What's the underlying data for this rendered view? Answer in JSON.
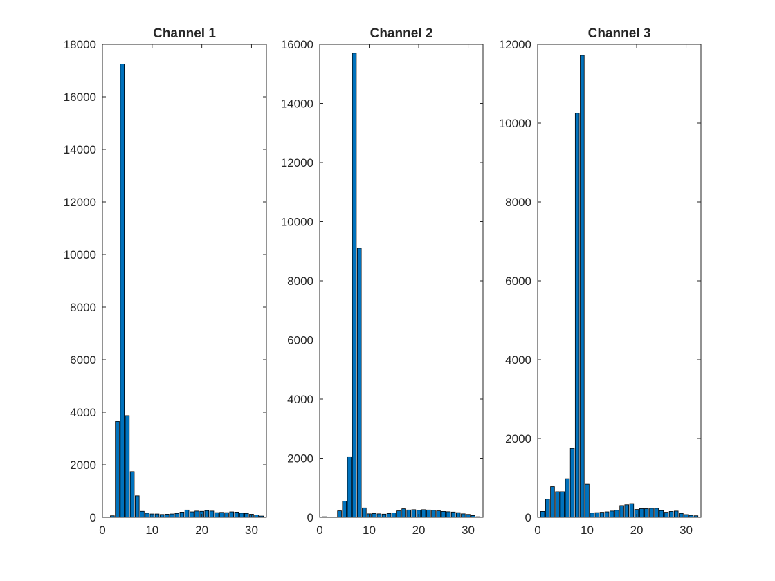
{
  "figure": {
    "background": "#ffffff",
    "bar_color": "#0072bd",
    "bar_edge_color": "#000000",
    "axis_color": "#262626"
  },
  "chart_data": [
    {
      "type": "bar",
      "title": "Channel 1",
      "xlabel": "",
      "ylabel": "",
      "xlim": [
        0,
        33
      ],
      "ylim": [
        0,
        18000
      ],
      "xticks": [
        0,
        10,
        20,
        30
      ],
      "yticks": [
        0,
        2000,
        4000,
        6000,
        8000,
        10000,
        12000,
        14000,
        16000,
        18000
      ],
      "grid": false,
      "x": [
        1,
        2,
        3,
        4,
        5,
        6,
        7,
        8,
        9,
        10,
        11,
        12,
        13,
        14,
        15,
        16,
        17,
        18,
        19,
        20,
        21,
        22,
        23,
        24,
        25,
        26,
        27,
        28,
        29,
        30,
        31,
        32
      ],
      "values": [
        10,
        60,
        3650,
        17250,
        3870,
        1740,
        820,
        230,
        160,
        130,
        130,
        110,
        120,
        130,
        150,
        200,
        280,
        210,
        240,
        230,
        260,
        240,
        180,
        190,
        180,
        210,
        200,
        160,
        150,
        120,
        90,
        50
      ]
    },
    {
      "type": "bar",
      "title": "Channel 2",
      "xlabel": "",
      "ylabel": "",
      "xlim": [
        0,
        33
      ],
      "ylim": [
        0,
        16000
      ],
      "xticks": [
        0,
        10,
        20,
        30
      ],
      "yticks": [
        0,
        2000,
        4000,
        6000,
        8000,
        10000,
        12000,
        14000,
        16000
      ],
      "grid": false,
      "x": [
        1,
        2,
        3,
        4,
        5,
        6,
        7,
        8,
        9,
        10,
        11,
        12,
        13,
        14,
        15,
        16,
        17,
        18,
        19,
        20,
        21,
        22,
        23,
        24,
        25,
        26,
        27,
        28,
        29,
        30,
        31,
        32
      ],
      "values": [
        20,
        5,
        10,
        220,
        550,
        2050,
        15700,
        9100,
        320,
        120,
        130,
        120,
        110,
        130,
        150,
        220,
        290,
        250,
        260,
        240,
        260,
        250,
        240,
        220,
        200,
        190,
        180,
        160,
        120,
        100,
        60,
        20
      ]
    },
    {
      "type": "bar",
      "title": "Channel 3",
      "xlabel": "",
      "ylabel": "",
      "xlim": [
        0,
        33
      ],
      "ylim": [
        0,
        12000
      ],
      "xticks": [
        0,
        10,
        20,
        30
      ],
      "yticks": [
        0,
        2000,
        4000,
        6000,
        8000,
        10000,
        12000
      ],
      "grid": false,
      "x": [
        1,
        2,
        3,
        4,
        5,
        6,
        7,
        8,
        9,
        10,
        11,
        12,
        13,
        14,
        15,
        16,
        17,
        18,
        19,
        20,
        21,
        22,
        23,
        24,
        25,
        26,
        27,
        28,
        29,
        30,
        31,
        32
      ],
      "values": [
        150,
        460,
        780,
        650,
        650,
        980,
        1750,
        10250,
        11720,
        840,
        110,
        120,
        130,
        140,
        160,
        180,
        300,
        320,
        350,
        200,
        220,
        220,
        230,
        230,
        170,
        130,
        150,
        160,
        100,
        70,
        50,
        40
      ]
    }
  ]
}
